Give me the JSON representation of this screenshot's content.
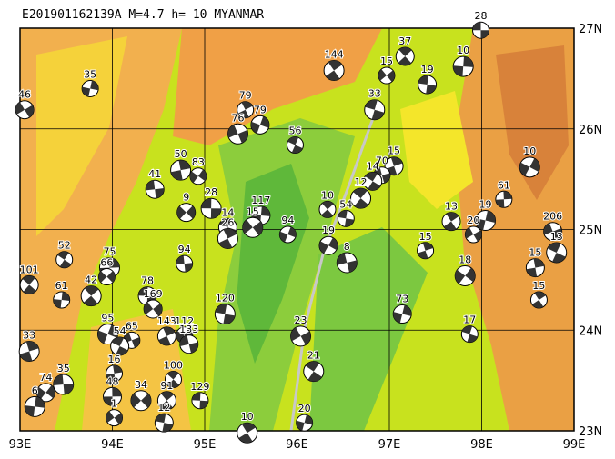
{
  "title": "E201901162139A  M=4.7  h= 10  MYANMAR",
  "lonlim": [
    93,
    99
  ],
  "latlim": [
    23,
    27
  ],
  "xticks": [
    {
      "value": 93,
      "label": "93E"
    },
    {
      "value": 94,
      "label": "94E"
    },
    {
      "value": 95,
      "label": "95E"
    },
    {
      "value": 96,
      "label": "96E"
    },
    {
      "value": 97,
      "label": "97E"
    },
    {
      "value": 98,
      "label": "98E"
    },
    {
      "value": 99,
      "label": "99E"
    }
  ],
  "yticks": [
    {
      "value": 27,
      "label": "27N"
    },
    {
      "value": 26,
      "label": "26N"
    },
    {
      "value": 25,
      "label": "25N"
    },
    {
      "value": 24,
      "label": "24N"
    },
    {
      "value": 23,
      "label": "23N"
    }
  ],
  "events": [
    {
      "depth": "28",
      "lon": 97.99,
      "lat": 26.98
    },
    {
      "depth": "37",
      "lon": 97.17,
      "lat": 26.72
    },
    {
      "depth": "10",
      "lon": 97.8,
      "lat": 26.62
    },
    {
      "depth": "15",
      "lon": 96.97,
      "lat": 26.53
    },
    {
      "depth": "19",
      "lon": 97.41,
      "lat": 26.44
    },
    {
      "depth": "144",
      "lon": 96.4,
      "lat": 26.58
    },
    {
      "depth": "35",
      "lon": 93.76,
      "lat": 26.4
    },
    {
      "depth": "46",
      "lon": 93.05,
      "lat": 26.19
    },
    {
      "depth": "33",
      "lon": 96.84,
      "lat": 26.19
    },
    {
      "depth": "79",
      "lon": 95.44,
      "lat": 26.19
    },
    {
      "depth": "79",
      "lon": 95.6,
      "lat": 26.04
    },
    {
      "depth": "76",
      "lon": 95.36,
      "lat": 25.95
    },
    {
      "depth": "56",
      "lon": 95.98,
      "lat": 25.84
    },
    {
      "depth": "15",
      "lon": 97.05,
      "lat": 25.63
    },
    {
      "depth": "10",
      "lon": 98.52,
      "lat": 25.62
    },
    {
      "depth": "70",
      "lon": 96.92,
      "lat": 25.54
    },
    {
      "depth": "14",
      "lon": 96.82,
      "lat": 25.48
    },
    {
      "depth": "50",
      "lon": 94.74,
      "lat": 25.59
    },
    {
      "depth": "83",
      "lon": 94.93,
      "lat": 25.53
    },
    {
      "depth": "41",
      "lon": 94.46,
      "lat": 25.4
    },
    {
      "depth": "12",
      "lon": 96.69,
      "lat": 25.31
    },
    {
      "depth": "61",
      "lon": 98.24,
      "lat": 25.3
    },
    {
      "depth": "9",
      "lon": 94.8,
      "lat": 25.17
    },
    {
      "depth": "28",
      "lon": 95.07,
      "lat": 25.21
    },
    {
      "depth": "10",
      "lon": 96.33,
      "lat": 25.2
    },
    {
      "depth": "117",
      "lon": 95.61,
      "lat": 25.14
    },
    {
      "depth": "15",
      "lon": 95.52,
      "lat": 25.02
    },
    {
      "depth": "54",
      "lon": 96.53,
      "lat": 25.11
    },
    {
      "depth": "13",
      "lon": 97.67,
      "lat": 25.08
    },
    {
      "depth": "19",
      "lon": 98.04,
      "lat": 25.09
    },
    {
      "depth": "20",
      "lon": 97.91,
      "lat": 24.95
    },
    {
      "depth": "14",
      "lon": 95.25,
      "lat": 25.02
    },
    {
      "depth": "26",
      "lon": 95.25,
      "lat": 24.91
    },
    {
      "depth": "94",
      "lon": 95.9,
      "lat": 24.95
    },
    {
      "depth": "206",
      "lon": 98.77,
      "lat": 24.98
    },
    {
      "depth": "13",
      "lon": 98.81,
      "lat": 24.77
    },
    {
      "depth": "15",
      "lon": 97.39,
      "lat": 24.79
    },
    {
      "depth": "19",
      "lon": 96.34,
      "lat": 24.84
    },
    {
      "depth": "8",
      "lon": 96.54,
      "lat": 24.67
    },
    {
      "depth": "52",
      "lon": 93.48,
      "lat": 24.7
    },
    {
      "depth": "15",
      "lon": 98.58,
      "lat": 24.62
    },
    {
      "depth": "18",
      "lon": 97.82,
      "lat": 24.54
    },
    {
      "depth": "94",
      "lon": 94.78,
      "lat": 24.66
    },
    {
      "depth": "101",
      "lon": 93.1,
      "lat": 24.45
    },
    {
      "depth": "75",
      "lon": 93.97,
      "lat": 24.62
    },
    {
      "depth": "66",
      "lon": 93.94,
      "lat": 24.53
    },
    {
      "depth": "78",
      "lon": 94.38,
      "lat": 24.34
    },
    {
      "depth": "42",
      "lon": 93.77,
      "lat": 24.34
    },
    {
      "depth": "61",
      "lon": 93.45,
      "lat": 24.3
    },
    {
      "depth": "169",
      "lon": 94.44,
      "lat": 24.21
    },
    {
      "depth": "120",
      "lon": 95.22,
      "lat": 24.16
    },
    {
      "depth": "15",
      "lon": 98.62,
      "lat": 24.3
    },
    {
      "depth": "73",
      "lon": 97.14,
      "lat": 24.16
    },
    {
      "depth": "23",
      "lon": 96.04,
      "lat": 23.94
    },
    {
      "depth": "17",
      "lon": 97.87,
      "lat": 23.96
    },
    {
      "depth": "143",
      "lon": 94.59,
      "lat": 23.94
    },
    {
      "depth": "95",
      "lon": 93.95,
      "lat": 23.96
    },
    {
      "depth": "65",
      "lon": 94.21,
      "lat": 23.9
    },
    {
      "depth": "54",
      "lon": 94.08,
      "lat": 23.84
    },
    {
      "depth": "33",
      "lon": 93.1,
      "lat": 23.79
    },
    {
      "depth": "112",
      "lon": 94.78,
      "lat": 23.95
    },
    {
      "depth": "133",
      "lon": 94.83,
      "lat": 23.86
    },
    {
      "depth": "21",
      "lon": 96.18,
      "lat": 23.59
    },
    {
      "depth": "16",
      "lon": 94.02,
      "lat": 23.57
    },
    {
      "depth": "74",
      "lon": 93.28,
      "lat": 23.38
    },
    {
      "depth": "35",
      "lon": 93.47,
      "lat": 23.46
    },
    {
      "depth": "100",
      "lon": 94.66,
      "lat": 23.51
    },
    {
      "depth": "48",
      "lon": 94.0,
      "lat": 23.34
    },
    {
      "depth": "34",
      "lon": 94.31,
      "lat": 23.3
    },
    {
      "depth": "129",
      "lon": 94.95,
      "lat": 23.3
    },
    {
      "depth": "91",
      "lon": 94.59,
      "lat": 23.3
    },
    {
      "depth": "6",
      "lon": 93.16,
      "lat": 23.24
    },
    {
      "depth": "1",
      "lon": 94.02,
      "lat": 23.13
    },
    {
      "depth": "12",
      "lon": 94.56,
      "lat": 23.08
    },
    {
      "depth": "10",
      "lon": 95.46,
      "lat": 22.98
    },
    {
      "depth": "20",
      "lon": 96.08,
      "lat": 23.08
    }
  ]
}
